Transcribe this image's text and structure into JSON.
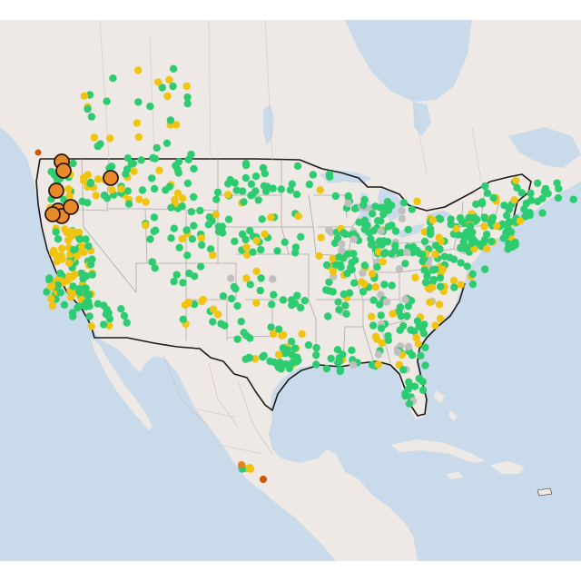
{
  "map": {
    "colors": {
      "water": "#c9daea",
      "land": "#efe9e6",
      "land_alt": "#ece6e3",
      "state_border": "#a9a9a9",
      "country_border": "#1a1a1a",
      "marker_good": "#2ecc71",
      "marker_moderate": "#f1c40f",
      "marker_unhealthy_sensitive": "#e67e22",
      "marker_unhealthy": "#d35400",
      "marker_nodata": "#c0c0c0",
      "large_marker_fill": "#e8892b",
      "large_marker_stroke": "#2b1a08"
    },
    "marker_categories": [
      "good",
      "moderate",
      "unhealthy_sensitive",
      "unhealthy",
      "nodata"
    ],
    "large_marker_count": 8
  }
}
